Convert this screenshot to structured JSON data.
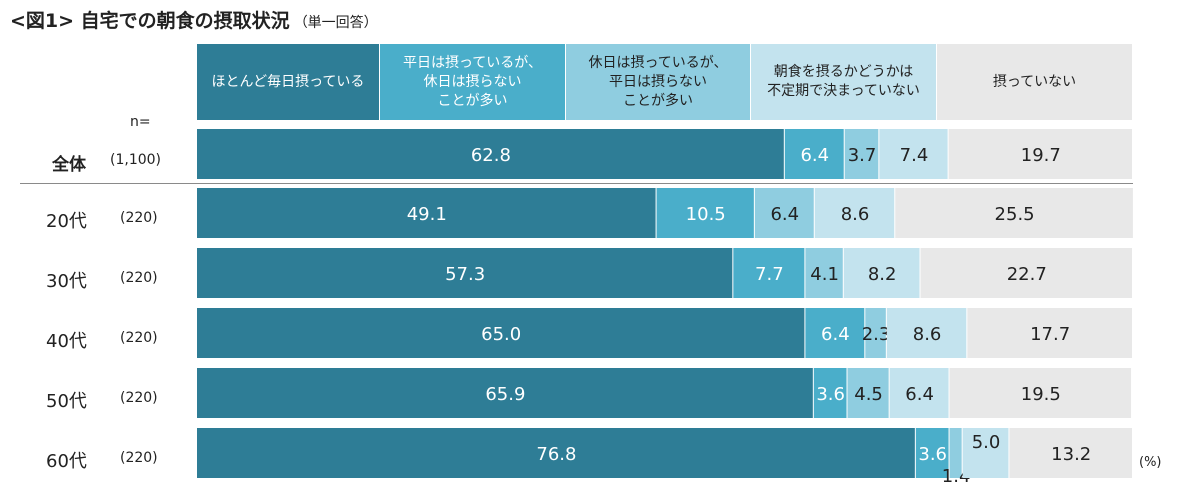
{
  "title": "<図1> 自宅での朝食の摂取状況",
  "subtitle": "（単一回答）",
  "n_label": "n=",
  "unit": "(%)",
  "colors": [
    "#2e7d96",
    "#4aaeca",
    "#8fcde0",
    "#c3e3ee",
    "#e8e8e8"
  ],
  "legend": [
    "ほとんど毎日摂っている",
    "平日は摂っているが、\n休日は摂らない\nことが多い",
    "休日は摂っているが、\n平日は摂らない\nことが多い",
    "朝食を摂るかどうかは\n不定期で決まっていない",
    "摂っていない"
  ],
  "chart_data": {
    "type": "bar",
    "orientation": "horizontal",
    "stacked": true,
    "categories": [
      "全体",
      "20代",
      "30代",
      "40代",
      "50代",
      "60代"
    ],
    "n": [
      "(1,100)",
      "(220)",
      "(220)",
      "(220)",
      "(220)",
      "(220)"
    ],
    "series": [
      {
        "name": "ほとんど毎日摂っている",
        "values": [
          62.8,
          49.1,
          57.3,
          65.0,
          65.9,
          76.8
        ]
      },
      {
        "name": "平日は摂っているが、休日は摂らないことが多い",
        "values": [
          6.4,
          10.5,
          7.7,
          6.4,
          3.6,
          3.6
        ]
      },
      {
        "name": "休日は摂っているが、平日は摂らないことが多い",
        "values": [
          3.7,
          6.4,
          4.1,
          2.3,
          4.5,
          1.4
        ]
      },
      {
        "name": "朝食を摂るかどうかは不定期で決まっていない",
        "values": [
          7.4,
          8.6,
          8.2,
          8.6,
          6.4,
          5.0
        ]
      },
      {
        "name": "摂っていない",
        "values": [
          19.7,
          25.5,
          22.7,
          17.7,
          19.5,
          13.2
        ]
      }
    ],
    "labels": [
      [
        "62.8",
        "6.4",
        "3.7",
        "7.4",
        "19.7"
      ],
      [
        "49.1",
        "10.5",
        "6.4",
        "8.6",
        "25.5"
      ],
      [
        "57.3",
        "7.7",
        "4.1",
        "8.2",
        "22.7"
      ],
      [
        "65.0",
        "6.4",
        "2.3",
        "8.6",
        "17.7"
      ],
      [
        "65.9",
        "3.6",
        "4.5",
        "6.4",
        "19.5"
      ],
      [
        "76.8",
        "3.6",
        "1.4",
        "5.0",
        "13.2"
      ]
    ],
    "xlim": [
      0,
      100
    ]
  }
}
